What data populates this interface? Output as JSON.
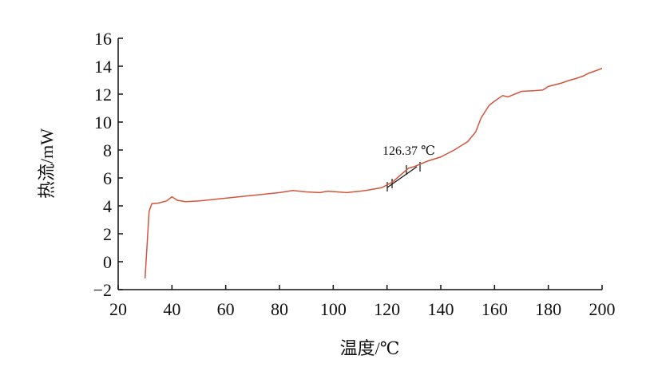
{
  "chart_data": {
    "type": "line",
    "x_label": "温度/℃",
    "y_label": "热流/mW",
    "annotation": "126.37 ℃",
    "series": [
      {
        "color": "#d4553c",
        "x": [
          30,
          31,
          31.5,
          32.5,
          35,
          38,
          40,
          42,
          45,
          50,
          60,
          70,
          80,
          85,
          90,
          95,
          98,
          105,
          110,
          112,
          118,
          122,
          125,
          128,
          130,
          135,
          140,
          145,
          150,
          153,
          155,
          158,
          160,
          163,
          165,
          170,
          175,
          178,
          180,
          185,
          188,
          190,
          193,
          195,
          198,
          200
        ],
        "values": [
          -1.2,
          2,
          3.6,
          4.15,
          4.2,
          4.35,
          4.65,
          4.4,
          4.3,
          4.35,
          4.55,
          4.75,
          4.95,
          5.1,
          5.0,
          4.95,
          5.05,
          4.95,
          5.05,
          5.1,
          5.3,
          5.7,
          6.2,
          6.7,
          6.8,
          7.2,
          7.5,
          8.0,
          8.6,
          9.3,
          10.3,
          11.2,
          11.5,
          11.9,
          11.8,
          12.2,
          12.25,
          12.3,
          12.55,
          12.8,
          13.0,
          13.1,
          13.3,
          13.5,
          13.7,
          13.85
        ]
      }
    ],
    "xlim": [
      20,
      200
    ],
    "xticks": [
      20,
      40,
      60,
      80,
      100,
      120,
      140,
      160,
      180,
      200
    ],
    "ylim": [
      -2,
      16
    ],
    "yticks": [
      {
        "value": -2,
        "label": "−2"
      },
      0,
      2,
      4,
      6,
      8,
      10,
      12,
      14,
      16
    ]
  }
}
